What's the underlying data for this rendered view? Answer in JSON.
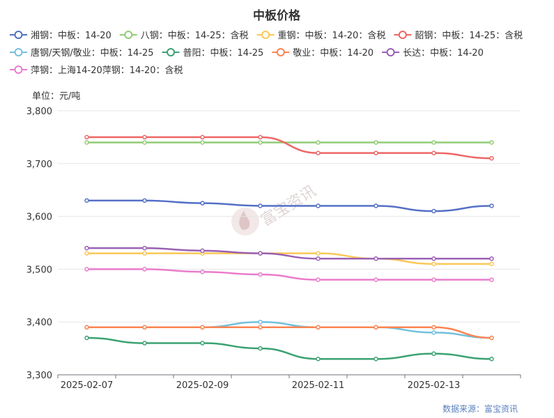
{
  "chart_data": {
    "type": "line",
    "title": "中板价格",
    "unit_label": "单位：元/吨",
    "source": "数据来源：富宝资讯",
    "watermark": "富宝资讯",
    "x_ticks": [
      "2025-02-07",
      "2025-02-09",
      "2025-02-11",
      "2025-02-13"
    ],
    "x": [
      "2025-02-07",
      "2025-02-08",
      "2025-02-09",
      "2025-02-10",
      "2025-02-11",
      "2025-02-12",
      "2025-02-13",
      "2025-02-14"
    ],
    "ylim": [
      3300,
      3800
    ],
    "y_ticks": [
      3300,
      3400,
      3500,
      3600,
      3700,
      3800
    ],
    "y_tick_labels": [
      "3,300",
      "3,400",
      "3,500",
      "3,600",
      "3,700",
      "3,800"
    ],
    "grid": true,
    "legend_position": "top",
    "series": [
      {
        "name": "湘钢：中板：14-20",
        "color": "#5470c6",
        "values": [
          3630,
          3630,
          3625,
          3620,
          3620,
          3620,
          3610,
          3620
        ]
      },
      {
        "name": "八钢：中板：14-25：含税",
        "color": "#91cc75",
        "values": [
          3740,
          3740,
          3740,
          3740,
          3740,
          3740,
          3740,
          3740
        ]
      },
      {
        "name": "重钢：中板：14-20：含税",
        "color": "#fac858",
        "values": [
          3530,
          3530,
          3530,
          3530,
          3530,
          3520,
          3510,
          3510
        ]
      },
      {
        "name": "韶钢：中板：14-25：含税",
        "color": "#ee6666",
        "values": [
          3750,
          3750,
          3750,
          3750,
          3720,
          3720,
          3720,
          3710
        ]
      },
      {
        "name": "唐钢/天钢/敬业：中板：14-25",
        "color": "#73c0de",
        "values": [
          3390,
          3390,
          3390,
          3400,
          3390,
          3390,
          3380,
          3370
        ]
      },
      {
        "name": "普阳：中板：14-25",
        "color": "#3ba272",
        "values": [
          3370,
          3360,
          3360,
          3350,
          3330,
          3330,
          3340,
          3330
        ]
      },
      {
        "name": "敬业：中板：14-20",
        "color": "#fc8452",
        "values": [
          3390,
          3390,
          3390,
          3390,
          3390,
          3390,
          3390,
          3370
        ]
      },
      {
        "name": "长达：中板：14-20",
        "color": "#9a60b4",
        "values": [
          3540,
          3540,
          3535,
          3530,
          3520,
          3520,
          3520,
          3520
        ]
      },
      {
        "name": "萍钢：上海14-20萍钢：14-20：含税",
        "color": "#ea7ccc",
        "values": [
          3500,
          3500,
          3495,
          3490,
          3480,
          3480,
          3480,
          3480
        ]
      }
    ]
  }
}
